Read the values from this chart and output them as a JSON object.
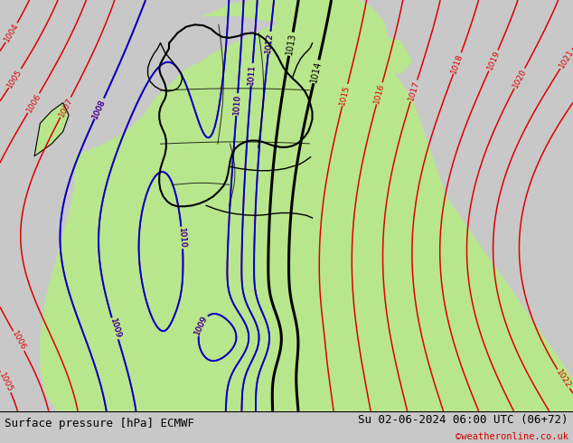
{
  "title_left": "Surface pressure [hPa] ECMWF",
  "title_right": "Su 02-06-2024 06:00 UTC (06+72)",
  "copyright": "©weatheronline.co.uk",
  "bg_green": "#b8e68c",
  "bg_gray": "#c8c8c8",
  "isobar_red": "#dd0000",
  "isobar_blue": "#0000cc",
  "isobar_black": "#000000",
  "border_color": "#000000",
  "title_fontsize": 9,
  "label_fontsize": 7,
  "bottom_bg": "#ffffff",
  "bottom_line_color": "#000000"
}
